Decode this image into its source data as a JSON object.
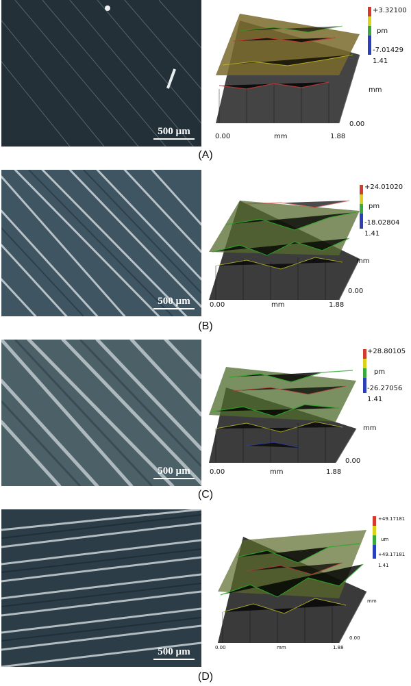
{
  "panels": [
    {
      "caption": "(A)",
      "scale": "500 µm",
      "top": "+3.32100",
      "unit": "pm",
      "bottom": "-7.01429",
      "ylen": "1.41",
      "yunit": "mm",
      "xstart": "0.00",
      "xunit": "mm",
      "xend": "1.88",
      "yzero": "0.00"
    },
    {
      "caption": "(B)",
      "scale": "500 µm",
      "top": "+24.01020",
      "unit": "pm",
      "bottom": "-18.02804",
      "ylen": "1.41",
      "yunit": "mm",
      "xstart": "0.00",
      "xunit": "mm",
      "xend": "1.88",
      "yzero": "0.00"
    },
    {
      "caption": "(C)",
      "scale": "500 µm",
      "top": "+28.80105",
      "unit": "pm",
      "bottom": "-26.27056",
      "ylen": "1.41",
      "yunit": "mm",
      "xstart": "0.00",
      "xunit": "mm",
      "xend": "1.88",
      "yzero": "0.00"
    },
    {
      "caption": "(D)",
      "scale": "500 µm",
      "top": "+49.17181",
      "unit": "um",
      "bottom": "+49.17181",
      "ylen": "1.41",
      "yunit": "mm",
      "xstart": "0.00",
      "xunit": "mm",
      "xend": "1.88",
      "yzero": "0.00"
    }
  ],
  "colors": {
    "red": "#d23b2e",
    "yellow": "#d9d21a",
    "green": "#3aa83a",
    "blue": "#2a3fb8",
    "micro_dark": "#1f2d36",
    "micro_mid": "#6f8592",
    "micro_light": "#dfe7ea"
  }
}
